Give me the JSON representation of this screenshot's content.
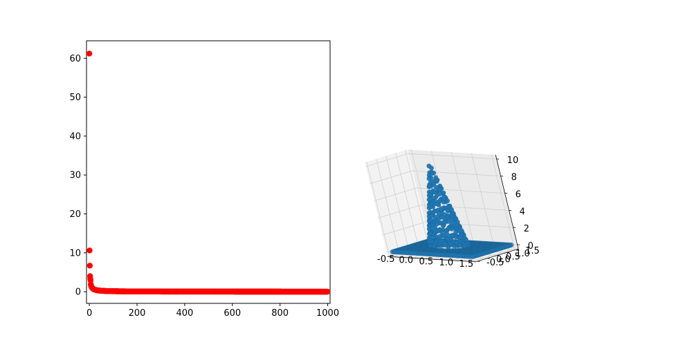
{
  "chart_data": [
    {
      "type": "scatter",
      "title": "",
      "xlabel": "",
      "ylabel": "",
      "xlim": [
        -12,
        1010
      ],
      "ylim": [
        -3,
        64.5
      ],
      "x_ticks": [
        "0",
        "200",
        "400",
        "600",
        "800",
        "1000"
      ],
      "y_ticks": [
        "0",
        "10",
        "20",
        "30",
        "40",
        "50",
        "60"
      ],
      "grid": false,
      "series": [
        {
          "color": "#ff0000",
          "marker": "circle",
          "x_range": [
            0,
            999
          ],
          "highlighted_points": [
            [
              0,
              61.2
            ],
            [
              1,
              10.6
            ],
            [
              2,
              6.7
            ],
            [
              3,
              4.0
            ],
            [
              4,
              3.3
            ],
            [
              5,
              2.9
            ]
          ],
          "trend": "y decays roughly as 10/x for x > 5, approaching 0"
        }
      ]
    },
    {
      "type": "scatter3d",
      "title": "",
      "xlabel": "",
      "ylabel": "",
      "zlabel": "",
      "x_ticks": [
        "-0.5",
        "0.0",
        "0.5",
        "1.0",
        "1.5"
      ],
      "y_ticks": [
        "-0.5",
        "0.0",
        "0.5",
        "1.0",
        "1.5"
      ],
      "z_ticks": [
        "0",
        "2",
        "4",
        "6",
        "8",
        "10"
      ],
      "xlim": [
        -0.6,
        1.6
      ],
      "ylim": [
        -0.6,
        1.6
      ],
      "zlim": [
        -0.5,
        10.5
      ],
      "grid": true,
      "series": [
        {
          "color": "#1f77b4",
          "marker": "circle",
          "grid_x_range": [
            -0.5,
            1.5
          ],
          "grid_y_range": [
            -0.5,
            1.5
          ],
          "grid_step": 0.05,
          "surface": "z = 0 outside the unit square; a peaked bump reaching about 10 inside it"
        }
      ]
    }
  ]
}
